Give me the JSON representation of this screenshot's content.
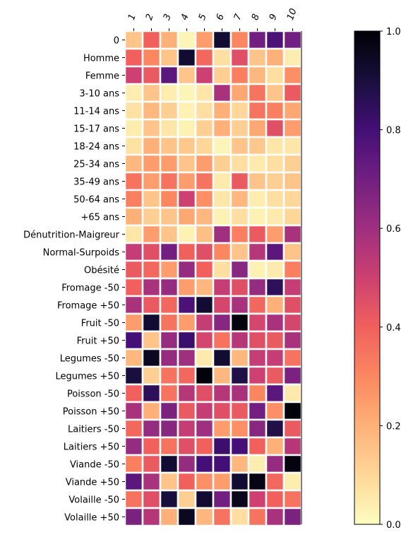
{
  "chart_data": {
    "type": "heatmap",
    "title": "",
    "xlabel": "",
    "ylabel": "",
    "columns": [
      "1",
      "2",
      "3",
      "4",
      "5",
      "6",
      "7",
      "8",
      "9",
      "10"
    ],
    "rows": [
      "0",
      "Homme",
      "Femme",
      "3-10 ans",
      "11-14 ans",
      "15-17 ans",
      "18-24 ans",
      "25-34 ans",
      "35-49 ans",
      "50-64 ans",
      "+65 ans",
      "Dénutrition-Maigreur",
      "Normal-Surpoids",
      "Obésité",
      "Fromage -50",
      "Fromage +50",
      "Fruit -50",
      "Fruit +50",
      "Legumes -50",
      "Legumes +50",
      "Poisson -50",
      "Poisson +50",
      "Laitiers -50",
      "Laitiers +50",
      "Viande -50",
      "Viande +50",
      "Volaille -50",
      "Volaille +50"
    ],
    "values": [
      [
        0.15,
        0.4,
        0.2,
        0.02,
        0.25,
        0.92,
        0.3,
        0.7,
        0.78,
        0.7
      ],
      [
        0.4,
        0.3,
        0.15,
        0.92,
        0.38,
        0.08,
        0.45,
        0.15,
        0.2,
        0.04
      ],
      [
        0.5,
        0.42,
        0.75,
        0.15,
        0.5,
        0.12,
        0.32,
        0.18,
        0.08,
        0.28
      ],
      [
        0.04,
        0.15,
        0.04,
        0.02,
        0.06,
        0.58,
        0.22,
        0.35,
        0.15,
        0.42
      ],
      [
        0.07,
        0.18,
        0.12,
        0.03,
        0.08,
        0.2,
        0.1,
        0.35,
        0.32,
        0.22
      ],
      [
        0.04,
        0.15,
        0.06,
        0.03,
        0.12,
        0.2,
        0.12,
        0.22,
        0.45,
        0.25
      ],
      [
        0.07,
        0.2,
        0.15,
        0.14,
        0.1,
        0.02,
        0.15,
        0.14,
        0.06,
        0.06
      ],
      [
        0.18,
        0.25,
        0.25,
        0.15,
        0.25,
        0.12,
        0.08,
        0.05,
        0.08,
        0.12
      ],
      [
        0.35,
        0.25,
        0.35,
        0.25,
        0.35,
        0.05,
        0.42,
        0.15,
        0.12,
        0.15
      ],
      [
        0.32,
        0.15,
        0.3,
        0.5,
        0.28,
        0.06,
        0.18,
        0.04,
        0.08,
        0.1
      ],
      [
        0.2,
        0.12,
        0.15,
        0.22,
        0.18,
        0.03,
        0.08,
        0.03,
        0.05,
        0.1
      ],
      [
        0.06,
        0.25,
        0.15,
        0.03,
        0.16,
        0.6,
        0.32,
        0.42,
        0.25,
        0.58
      ],
      [
        0.52,
        0.45,
        0.7,
        0.4,
        0.45,
        0.3,
        0.15,
        0.55,
        0.75,
        0.15
      ],
      [
        0.42,
        0.38,
        0.25,
        0.62,
        0.4,
        0.08,
        0.65,
        0.03,
        0.05,
        0.32
      ],
      [
        0.4,
        0.58,
        0.62,
        0.25,
        0.18,
        0.52,
        0.45,
        0.62,
        0.85,
        0.52
      ],
      [
        0.58,
        0.42,
        0.38,
        0.78,
        0.92,
        0.48,
        0.58,
        0.38,
        0.2,
        0.45
      ],
      [
        0.25,
        0.92,
        0.35,
        0.25,
        0.52,
        0.65,
        0.98,
        0.48,
        0.58,
        0.48
      ],
      [
        0.8,
        0.15,
        0.62,
        0.82,
        0.48,
        0.35,
        0.55,
        0.45,
        0.42,
        0.58
      ],
      [
        0.18,
        0.95,
        0.62,
        0.6,
        0.05,
        0.92,
        0.18,
        0.52,
        0.52,
        0.35
      ],
      [
        0.9,
        0.12,
        0.35,
        0.38,
        0.99,
        0.18,
        0.88,
        0.5,
        0.42,
        0.68
      ],
      [
        0.4,
        0.85,
        0.35,
        0.55,
        0.45,
        0.55,
        0.58,
        0.3,
        0.75,
        0.05
      ],
      [
        0.58,
        0.2,
        0.68,
        0.42,
        0.52,
        0.45,
        0.42,
        0.7,
        0.28,
        0.99
      ],
      [
        0.38,
        0.62,
        0.65,
        0.52,
        0.6,
        0.25,
        0.28,
        0.65,
        0.88,
        0.42
      ],
      [
        0.62,
        0.4,
        0.35,
        0.45,
        0.4,
        0.82,
        0.8,
        0.4,
        0.2,
        0.55
      ],
      [
        0.32,
        0.42,
        0.92,
        0.62,
        0.8,
        0.8,
        0.18,
        0.04,
        0.62,
        0.98
      ],
      [
        0.75,
        0.58,
        0.15,
        0.4,
        0.28,
        0.25,
        0.92,
        0.97,
        0.38,
        0.04
      ],
      [
        0.35,
        0.45,
        0.9,
        0.12,
        0.92,
        0.7,
        0.96,
        0.5,
        0.4,
        0.35
      ],
      [
        0.68,
        0.55,
        0.2,
        0.95,
        0.18,
        0.35,
        0.08,
        0.35,
        0.58,
        0.68
      ]
    ],
    "colormap": "magma_r",
    "vmin": 0.0,
    "vmax": 1.0,
    "colorbar_ticks": [
      "0.0",
      "0.2",
      "0.4",
      "0.6",
      "0.8",
      "1.0"
    ],
    "colorbar_tick_values": [
      0.0,
      0.2,
      0.4,
      0.6,
      0.8,
      1.0
    ],
    "cell_gap_color": "#ffffff"
  }
}
